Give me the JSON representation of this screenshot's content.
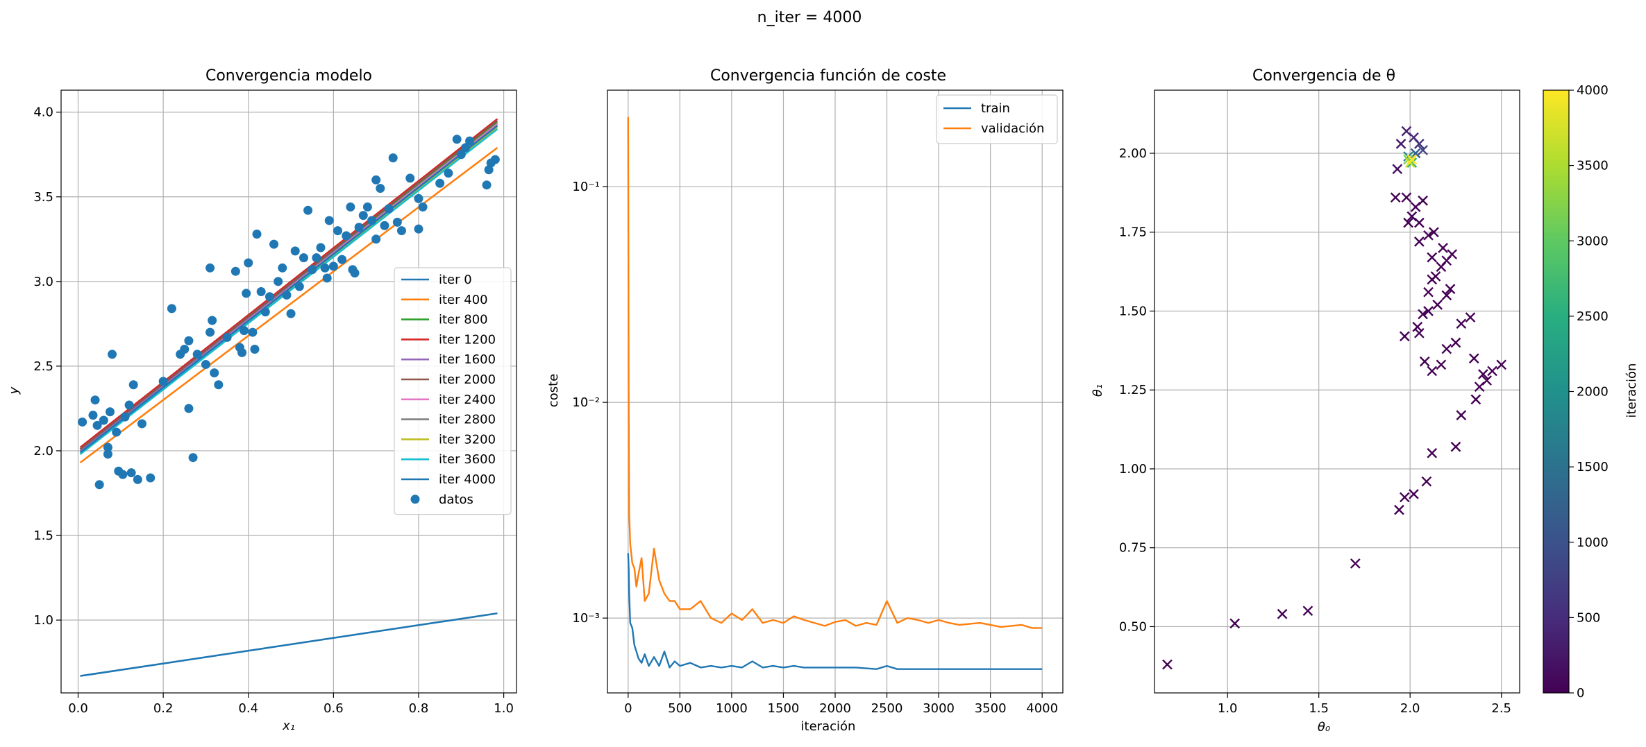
{
  "suptitle": "n_iter = 4000",
  "chart_data": [
    {
      "type": "line",
      "title": "Convergencia modelo",
      "xlabel": "x₁",
      "ylabel": "y",
      "xlim": [
        -0.04,
        1.03
      ],
      "ylim": [
        0.57,
        4.13
      ],
      "xticks": [
        0.0,
        0.2,
        0.4,
        0.6,
        0.8,
        1.0
      ],
      "xtick_labels": [
        "0.0",
        "0.2",
        "0.4",
        "0.6",
        "0.8",
        "1.0"
      ],
      "yticks": [
        1.0,
        1.5,
        2.0,
        2.5,
        3.0,
        3.5,
        4.0
      ],
      "ytick_labels": [
        "1.0",
        "1.5",
        "2.0",
        "2.5",
        "3.0",
        "3.5",
        "4.0"
      ],
      "grid": true,
      "legend": "center-right",
      "x_range": [
        0.005,
        0.985
      ],
      "series": [
        {
          "name": "iter 0",
          "color": "#1f77b4",
          "y_start": 0.67,
          "y_end": 1.04
        },
        {
          "name": "iter 400",
          "color": "#ff7f0e",
          "y_start": 1.93,
          "y_end": 3.79
        },
        {
          "name": "iter 800",
          "color": "#2ca02c",
          "y_start": 2.01,
          "y_end": 3.94
        },
        {
          "name": "iter 1200",
          "color": "#d62728",
          "y_start": 2.02,
          "y_end": 3.96
        },
        {
          "name": "iter 1600",
          "color": "#9467bd",
          "y_start": 2.0,
          "y_end": 3.93
        },
        {
          "name": "iter 2000",
          "color": "#8c564b",
          "y_start": 2.01,
          "y_end": 3.95
        },
        {
          "name": "iter 2400",
          "color": "#e377c2",
          "y_start": 1.99,
          "y_end": 3.93
        },
        {
          "name": "iter 2800",
          "color": "#7f7f7f",
          "y_start": 1.99,
          "y_end": 3.92
        },
        {
          "name": "iter 3200",
          "color": "#bcbd22",
          "y_start": 1.98,
          "y_end": 3.91
        },
        {
          "name": "iter 3600",
          "color": "#17becf",
          "y_start": 1.98,
          "y_end": 3.9
        },
        {
          "name": "iter 4000",
          "color": "#1f77b4",
          "y_start": 1.99,
          "y_end": 3.92
        }
      ],
      "scatter": {
        "name": "datos",
        "color": "#1f77b4",
        "x": [
          0.01,
          0.035,
          0.04,
          0.045,
          0.05,
          0.06,
          0.07,
          0.07,
          0.075,
          0.08,
          0.09,
          0.095,
          0.105,
          0.11,
          0.12,
          0.125,
          0.13,
          0.14,
          0.15,
          0.17,
          0.2,
          0.22,
          0.24,
          0.25,
          0.26,
          0.26,
          0.27,
          0.28,
          0.3,
          0.31,
          0.31,
          0.315,
          0.32,
          0.33,
          0.35,
          0.37,
          0.38,
          0.385,
          0.39,
          0.395,
          0.4,
          0.41,
          0.415,
          0.42,
          0.43,
          0.44,
          0.45,
          0.46,
          0.47,
          0.48,
          0.49,
          0.5,
          0.51,
          0.52,
          0.53,
          0.54,
          0.55,
          0.56,
          0.57,
          0.58,
          0.585,
          0.59,
          0.6,
          0.61,
          0.62,
          0.63,
          0.64,
          0.645,
          0.65,
          0.66,
          0.67,
          0.68,
          0.69,
          0.7,
          0.7,
          0.71,
          0.72,
          0.73,
          0.74,
          0.75,
          0.76,
          0.78,
          0.8,
          0.8,
          0.81,
          0.85,
          0.87,
          0.89,
          0.9,
          0.91,
          0.92,
          0.96,
          0.965,
          0.98,
          0.97
        ],
        "y": [
          2.17,
          2.21,
          2.3,
          2.15,
          1.8,
          2.18,
          1.98,
          2.02,
          2.23,
          2.57,
          2.11,
          1.88,
          1.86,
          2.2,
          2.27,
          1.87,
          2.39,
          1.83,
          2.16,
          1.84,
          2.41,
          2.84,
          2.57,
          2.6,
          2.65,
          2.25,
          1.96,
          2.57,
          2.51,
          2.7,
          3.08,
          2.77,
          2.46,
          2.39,
          2.67,
          3.06,
          2.61,
          2.58,
          2.71,
          2.93,
          3.11,
          2.7,
          2.6,
          3.28,
          2.94,
          2.82,
          2.91,
          3.22,
          3.0,
          3.08,
          2.92,
          2.81,
          3.18,
          2.97,
          3.14,
          3.42,
          3.07,
          3.14,
          3.2,
          3.08,
          3.02,
          3.36,
          3.09,
          3.3,
          3.13,
          3.27,
          3.44,
          3.07,
          3.05,
          3.32,
          3.39,
          3.44,
          3.36,
          3.25,
          3.6,
          3.55,
          3.33,
          3.43,
          3.73,
          3.35,
          3.3,
          3.61,
          3.31,
          3.49,
          3.44,
          3.58,
          3.64,
          3.84,
          3.75,
          3.79,
          3.83,
          3.57,
          3.66,
          3.72,
          3.7
        ]
      }
    },
    {
      "type": "line",
      "title": "Convergencia función de coste",
      "xlabel": "iteración",
      "ylabel": "coste",
      "yscale": "log",
      "xlim": [
        -200,
        4200
      ],
      "ylim": [
        0.00045,
        0.28
      ],
      "xticks": [
        0,
        500,
        1000,
        1500,
        2000,
        2500,
        3000,
        3500,
        4000
      ],
      "xtick_labels": [
        "0",
        "500",
        "1000",
        "1500",
        "2000",
        "2500",
        "3000",
        "3500",
        "4000"
      ],
      "yticks": [
        0.001,
        0.01,
        0.1
      ],
      "ytick_labels": [
        "10⁻³",
        "10⁻²",
        "10⁻¹"
      ],
      "grid": true,
      "legend": "upper-right",
      "series": [
        {
          "name": "train",
          "color": "#1f77b4",
          "x": [
            0,
            5,
            10,
            20,
            40,
            60,
            80,
            100,
            130,
            160,
            200,
            250,
            300,
            350,
            400,
            450,
            500,
            600,
            700,
            800,
            900,
            1000,
            1100,
            1200,
            1300,
            1400,
            1500,
            1600,
            1700,
            1800,
            1900,
            2000,
            2200,
            2400,
            2500,
            2600,
            2800,
            3000,
            3200,
            3400,
            3600,
            3800,
            4000
          ],
          "y": [
            0.002,
            0.0017,
            0.0013,
            0.00095,
            0.0009,
            0.00075,
            0.0007,
            0.00065,
            0.00062,
            0.00068,
            0.0006,
            0.00066,
            0.0006,
            0.0007,
            0.00059,
            0.00063,
            0.0006,
            0.00062,
            0.00059,
            0.0006,
            0.00059,
            0.0006,
            0.00059,
            0.00063,
            0.00059,
            0.0006,
            0.00059,
            0.0006,
            0.00059,
            0.00059,
            0.00059,
            0.00059,
            0.00059,
            0.00058,
            0.0006,
            0.00058,
            0.00058,
            0.00058,
            0.00058,
            0.00058,
            0.00058,
            0.00058,
            0.00058
          ]
        },
        {
          "name": "validación",
          "color": "#ff7f0e",
          "x": [
            0,
            5,
            10,
            15,
            20,
            30,
            40,
            60,
            80,
            100,
            130,
            160,
            200,
            250,
            300,
            350,
            400,
            450,
            500,
            600,
            700,
            800,
            900,
            1000,
            1100,
            1200,
            1300,
            1400,
            1500,
            1600,
            1700,
            1800,
            1900,
            2000,
            2100,
            2200,
            2300,
            2400,
            2500,
            2600,
            2700,
            2800,
            2900,
            3000,
            3100,
            3200,
            3300,
            3400,
            3500,
            3600,
            3700,
            3800,
            3900,
            4000
          ],
          "y": [
            0.21,
            0.012,
            0.003,
            0.0026,
            0.0022,
            0.002,
            0.0018,
            0.0017,
            0.0014,
            0.0016,
            0.0019,
            0.0012,
            0.0013,
            0.0021,
            0.0015,
            0.0013,
            0.0012,
            0.0012,
            0.0011,
            0.0011,
            0.0012,
            0.001,
            0.00095,
            0.00105,
            0.00098,
            0.0011,
            0.00095,
            0.00098,
            0.00095,
            0.00102,
            0.00098,
            0.00095,
            0.00092,
            0.00096,
            0.00098,
            0.00092,
            0.00095,
            0.00093,
            0.0012,
            0.00095,
            0.001,
            0.00098,
            0.00095,
            0.00098,
            0.00095,
            0.00093,
            0.00094,
            0.00095,
            0.00093,
            0.00091,
            0.00092,
            0.00093,
            0.0009,
            0.0009
          ]
        }
      ]
    },
    {
      "type": "scatter",
      "title": "Convergencia de θ",
      "xlabel": "θ₀",
      "ylabel": "θ₁",
      "xlim": [
        0.6,
        2.6
      ],
      "ylim": [
        0.29,
        2.2
      ],
      "xticks": [
        1.0,
        1.5,
        2.0,
        2.5
      ],
      "xtick_labels": [
        "1.0",
        "1.5",
        "2.0",
        "2.5"
      ],
      "yticks": [
        0.5,
        0.75,
        1.0,
        1.25,
        1.5,
        1.75,
        2.0
      ],
      "ytick_labels": [
        "0.50",
        "0.75",
        "1.00",
        "1.25",
        "1.50",
        "1.75",
        "2.00"
      ],
      "grid": true,
      "marker": "x",
      "points": [
        [
          0.67,
          0.38,
          0
        ],
        [
          1.04,
          0.51,
          0
        ],
        [
          1.3,
          0.54,
          0
        ],
        [
          1.44,
          0.55,
          0
        ],
        [
          1.7,
          0.7,
          0
        ],
        [
          1.94,
          0.87,
          0
        ],
        [
          1.97,
          0.91,
          0
        ],
        [
          2.02,
          0.92,
          0
        ],
        [
          2.09,
          0.96,
          0
        ],
        [
          2.12,
          1.05,
          0
        ],
        [
          2.25,
          1.07,
          0
        ],
        [
          2.28,
          1.17,
          0
        ],
        [
          2.36,
          1.22,
          0
        ],
        [
          2.38,
          1.26,
          0
        ],
        [
          2.4,
          1.3,
          0
        ],
        [
          2.45,
          1.31,
          0
        ],
        [
          2.5,
          1.33,
          0
        ],
        [
          2.42,
          1.28,
          0
        ],
        [
          2.35,
          1.35,
          0
        ],
        [
          2.33,
          1.48,
          0
        ],
        [
          2.28,
          1.46,
          0
        ],
        [
          2.25,
          1.4,
          0
        ],
        [
          2.2,
          1.38,
          0
        ],
        [
          2.17,
          1.33,
          0
        ],
        [
          2.12,
          1.31,
          0
        ],
        [
          2.08,
          1.34,
          0
        ],
        [
          2.05,
          1.43,
          0
        ],
        [
          2.04,
          1.45,
          0
        ],
        [
          1.97,
          1.42,
          0
        ],
        [
          2.1,
          1.5,
          0
        ],
        [
          2.15,
          1.52,
          0
        ],
        [
          2.2,
          1.55,
          0
        ],
        [
          2.22,
          1.57,
          0
        ],
        [
          2.1,
          1.56,
          0
        ],
        [
          2.07,
          1.49,
          0
        ],
        [
          2.12,
          1.6,
          0
        ],
        [
          2.14,
          1.61,
          0
        ],
        [
          2.17,
          1.64,
          0
        ],
        [
          2.2,
          1.66,
          0
        ],
        [
          2.23,
          1.68,
          0
        ],
        [
          2.12,
          1.67,
          0
        ],
        [
          2.18,
          1.7,
          0
        ],
        [
          2.05,
          1.72,
          0
        ],
        [
          2.1,
          1.74,
          0
        ],
        [
          2.13,
          1.75,
          0
        ],
        [
          2.01,
          1.8,
          0
        ],
        [
          2.03,
          1.83,
          0
        ],
        [
          2.07,
          1.85,
          0
        ],
        [
          1.98,
          1.86,
          0
        ],
        [
          1.92,
          1.86,
          0
        ],
        [
          2.05,
          1.78,
          0
        ],
        [
          1.99,
          1.78,
          0
        ],
        [
          1.93,
          1.95,
          150
        ],
        [
          1.95,
          2.03,
          250
        ],
        [
          1.98,
          2.07,
          350
        ],
        [
          2.02,
          2.05,
          450
        ],
        [
          2.05,
          2.03,
          600
        ],
        [
          2.07,
          2.01,
          800
        ],
        [
          2.03,
          2.0,
          1200
        ],
        [
          1.99,
          1.99,
          1800
        ],
        [
          2.01,
          1.97,
          2500
        ],
        [
          1.99,
          1.98,
          3200
        ],
        [
          2.0,
          1.97,
          3700
        ],
        [
          2.01,
          1.98,
          4000
        ]
      ],
      "colorbar": {
        "label": "iteración",
        "range": [
          0,
          4000
        ],
        "ticks": [
          0,
          500,
          1000,
          1500,
          2000,
          2500,
          3000,
          3500,
          4000
        ],
        "tick_labels": [
          "0",
          "500",
          "1000",
          "1500",
          "2000",
          "2500",
          "3000",
          "3500",
          "4000"
        ],
        "colormap": "viridis"
      }
    }
  ]
}
